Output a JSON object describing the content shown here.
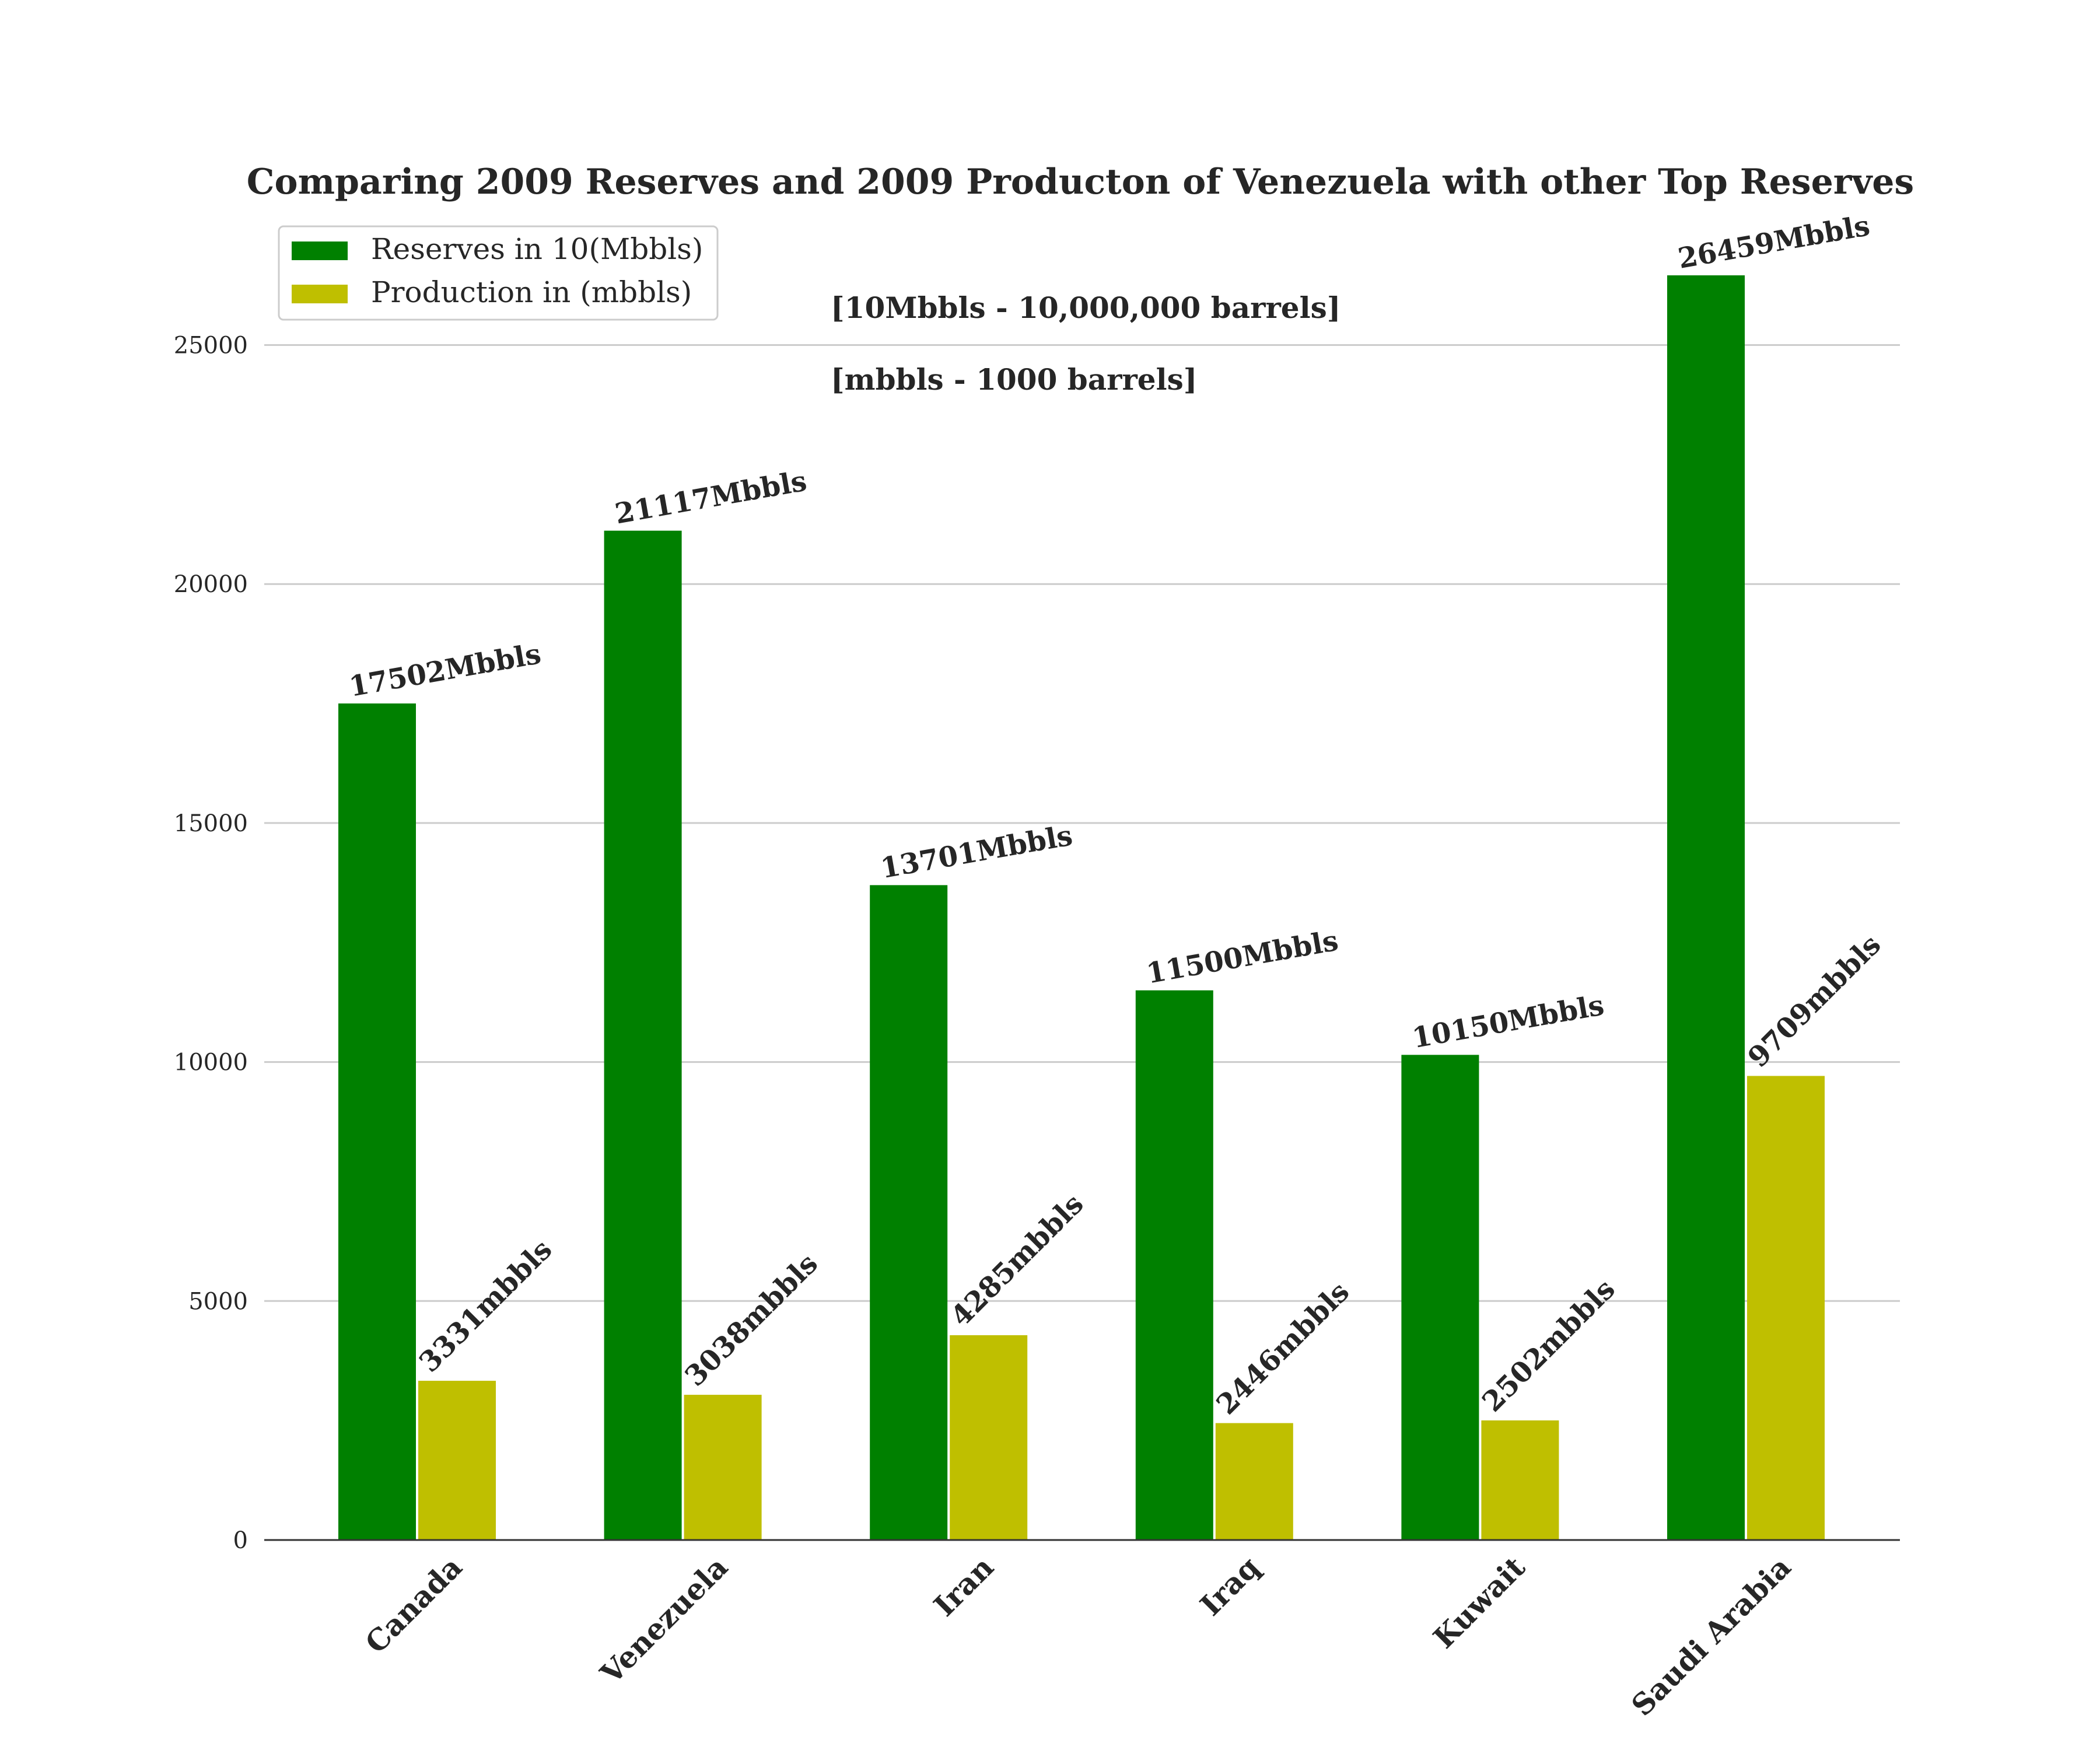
{
  "chart_data": {
    "type": "bar",
    "title": "Comparing 2009 Reserves and 2009 Producton of Venezuela with other Top Reserves",
    "annotations": [
      "[10Mbbls - 10,000,000 barrels]",
      "[mbbls - 1000 barrels]"
    ],
    "categories": [
      "Canada",
      "Venezuela",
      "Iran",
      "Iraq",
      "Kuwait",
      "Saudi Arabia"
    ],
    "series": [
      {
        "name": "Reserves in 10(Mbbls)",
        "color": "#008000",
        "values": [
          17502,
          21117,
          13701,
          11500,
          10150,
          26459
        ],
        "labels": [
          "17502Mbbls",
          "21117Mbbls",
          "13701Mbbls",
          "11500Mbbls",
          "10150Mbbls",
          "26459Mbbls"
        ]
      },
      {
        "name": "Production in (mbbls)",
        "color": "#bfbf00",
        "values": [
          3331,
          3038,
          4285,
          2446,
          2502,
          9709
        ],
        "labels": [
          "3331mbbls",
          "3038mbbls",
          "4285mbbls",
          "2446mbbls",
          "2502mbbls",
          "9709mbbls"
        ]
      }
    ],
    "yticks": [
      "0",
      "5000",
      "10000",
      "15000",
      "20000",
      "25000"
    ],
    "ylim": [
      0,
      26459
    ],
    "grid": true,
    "legend_position": "top-left",
    "xlabel": "",
    "ylabel": ""
  }
}
